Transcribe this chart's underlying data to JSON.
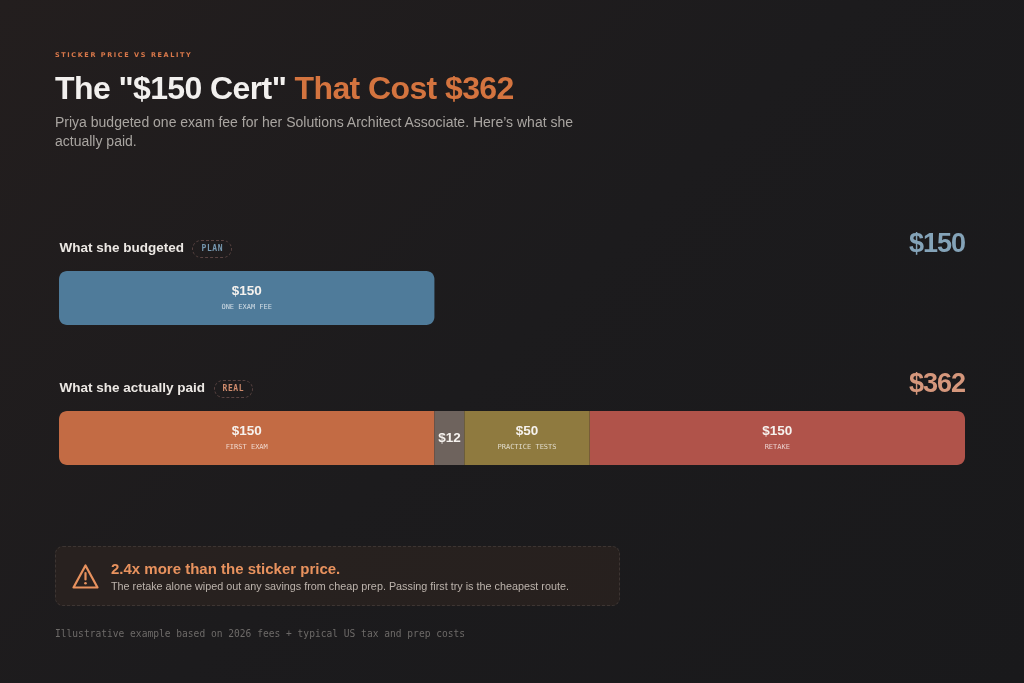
{
  "chart_data": {
    "type": "bar",
    "orientation": "horizontal",
    "stacked": true,
    "title": "The \"$150 Cert\" That Cost $362",
    "subtitle": "Priya budgeted one exam fee for her Solutions Architect Associate. Here’s what she actually paid.",
    "categories": [
      "What she budgeted",
      "What she actually paid"
    ],
    "series": [
      {
        "name": "ONE EXAM FEE",
        "color": "#4f7b9a",
        "values": [
          150,
          null
        ],
        "value_labels": [
          "$150",
          null
        ]
      },
      {
        "name": "FIRST EXAM",
        "color": "#c36b44",
        "values": [
          null,
          150
        ],
        "value_labels": [
          null,
          "$150"
        ]
      },
      {
        "color": "#6e635d",
        "values": [
          null,
          12
        ],
        "value_labels": [
          null,
          "$12"
        ]
      },
      {
        "name": "PRACTICE TESTS",
        "color": "#8f7a3f",
        "values": [
          null,
          50
        ],
        "value_labels": [
          null,
          "$50"
        ]
      },
      {
        "name": "RETAKE",
        "color": "#b0534a",
        "values": [
          null,
          150
        ],
        "value_labels": [
          null,
          "$150"
        ]
      }
    ],
    "annotations": [
      "STICKER PRICE VS REALITY",
      {
        "text": "PLAN",
        "y": "What she budgeted"
      },
      "$150",
      {
        "text": "REAL",
        "y": "What she actually paid"
      },
      "$362",
      "2.4x more than the sticker price.",
      "The retake alone wiped out any savings from cheap prep. Passing first try is the cheapest route.",
      "Illustrative example based on 2026 fees + typical US tax and prep costs"
    ],
    "tick_labels": "y",
    "legend": false,
    "grid": false
  }
}
